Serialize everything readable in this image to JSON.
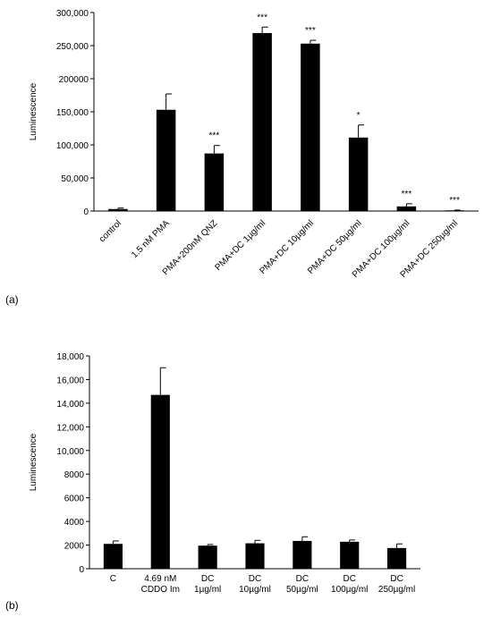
{
  "panels": {
    "a": "(a)",
    "b": "(b)"
  },
  "chart_data": [
    {
      "type": "bar",
      "title": "",
      "xlabel": "",
      "ylabel": "Luminescence",
      "ylim": [
        0,
        300000
      ],
      "grid": false,
      "legend": "none",
      "bar_color": "#000000",
      "categories": [
        "control",
        "1.5 nM PMA",
        "PMA+200nM QNZ",
        "PMA+DC 1µg/ml",
        "PMA+DC 10µg/ml",
        "PMA+DC 50µg/ml",
        "PMA+DC 100µg/ml",
        "PMA+DC 250µg/ml"
      ],
      "values": [
        3000,
        153000,
        87000,
        269000,
        253000,
        111000,
        7000,
        1000
      ],
      "errors": [
        1500,
        24000,
        12000,
        9000,
        5000,
        19000,
        4000,
        500
      ],
      "significance": [
        "",
        "",
        "***",
        "***",
        "***",
        "*",
        "***",
        "***"
      ],
      "yticks": [
        "0",
        "50,000",
        "100,000",
        "150,000",
        "200000",
        "250,000",
        "300,000"
      ]
    },
    {
      "type": "bar",
      "title": "",
      "xlabel": "",
      "ylabel": "Luminescence",
      "ylim": [
        0,
        18000
      ],
      "grid": false,
      "legend": "none",
      "bar_color": "#000000",
      "categories": [
        [
          "C"
        ],
        [
          "4.69 nM",
          "CDDO Im"
        ],
        [
          "DC",
          "1µg/ml"
        ],
        [
          "DC",
          "10µg/ml"
        ],
        [
          "DC",
          "50µg/ml"
        ],
        [
          "DC",
          "100µg/ml"
        ],
        [
          "DC",
          "250µg/ml"
        ]
      ],
      "values": [
        2100,
        14700,
        1950,
        2150,
        2350,
        2280,
        1750
      ],
      "errors": [
        250,
        2300,
        100,
        250,
        350,
        150,
        350
      ],
      "yticks": [
        "0",
        "2000",
        "4000",
        "6000",
        "8000",
        "10,000",
        "12,000",
        "14,000",
        "16,000",
        "18,000"
      ]
    }
  ]
}
